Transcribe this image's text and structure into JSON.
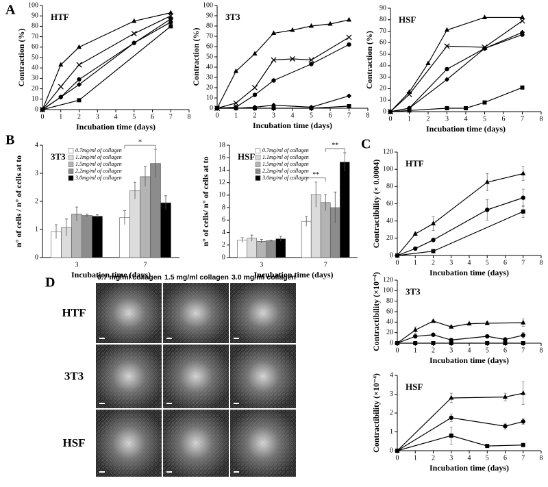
{
  "panels": [
    "A",
    "B",
    "C",
    "D"
  ],
  "chart_data": [
    {
      "type": "line",
      "title": "HTF",
      "xlabel": "Incubation time (days)",
      "ylabel": "Contraction (%)",
      "xlim": [
        0,
        8
      ],
      "xticks": [
        0,
        1,
        2,
        3,
        4,
        5,
        6,
        7,
        8
      ],
      "ylim": [
        0,
        100
      ],
      "yticks": [
        0,
        10,
        20,
        30,
        40,
        50,
        60,
        70,
        80,
        90,
        100
      ],
      "series": [
        {
          "marker": "triangle",
          "color": "#000000",
          "x": [
            0,
            1,
            2,
            5,
            7
          ],
          "values": [
            0,
            43,
            60,
            85,
            93
          ]
        },
        {
          "marker": "cross",
          "color": "#000000",
          "x": [
            0,
            1,
            2,
            5,
            7
          ],
          "values": [
            0,
            22,
            43,
            73,
            90
          ]
        },
        {
          "marker": "diamond",
          "color": "#000000",
          "x": [
            0,
            1,
            2,
            5,
            7
          ],
          "values": [
            0,
            12,
            24,
            64,
            87
          ]
        },
        {
          "marker": "circle",
          "color": "#000000",
          "x": [
            0,
            1,
            2,
            5,
            7
          ],
          "values": [
            0,
            12,
            29,
            64,
            84
          ]
        },
        {
          "marker": "square",
          "color": "#000000",
          "x": [
            0,
            2,
            7
          ],
          "values": [
            0,
            9,
            80
          ]
        }
      ]
    },
    {
      "type": "line",
      "title": "3T3",
      "xlabel": "Incubation time (days)",
      "ylabel": "Contraction (%)",
      "xlim": [
        0,
        8
      ],
      "xticks": [
        0,
        1,
        2,
        3,
        4,
        5,
        6,
        7,
        8
      ],
      "ylim": [
        0,
        100
      ],
      "yticks": [
        0,
        10,
        20,
        30,
        40,
        50,
        60,
        70,
        80,
        90,
        100
      ],
      "series": [
        {
          "marker": "triangle",
          "color": "#000000",
          "x": [
            0,
            1,
            2,
            3,
            4,
            5,
            6,
            7
          ],
          "values": [
            0,
            36,
            53,
            73,
            76,
            80,
            82,
            86
          ]
        },
        {
          "marker": "cross",
          "color": "#000000",
          "x": [
            0,
            1,
            2,
            3,
            4,
            5,
            7
          ],
          "values": [
            0,
            5,
            20,
            47,
            48,
            47,
            69
          ]
        },
        {
          "marker": "circle",
          "color": "#000000",
          "x": [
            0,
            1,
            2,
            3,
            5,
            7
          ],
          "values": [
            0,
            1,
            13,
            27,
            43,
            62
          ]
        },
        {
          "marker": "diamond",
          "color": "#000000",
          "x": [
            0,
            1,
            2,
            3,
            5,
            7
          ],
          "values": [
            0,
            0,
            1,
            3,
            1,
            12
          ]
        },
        {
          "marker": "square",
          "color": "#000000",
          "x": [
            0,
            1,
            2,
            3,
            5,
            7
          ],
          "values": [
            0,
            0,
            0,
            0,
            0,
            2
          ]
        }
      ]
    },
    {
      "type": "line",
      "title": "HSF",
      "xlabel": "Incubation time (days)",
      "ylabel": "Contraction (%)",
      "xlim": [
        0,
        8
      ],
      "xticks": [
        0,
        1,
        2,
        3,
        4,
        5,
        6,
        7,
        8
      ],
      "ylim": [
        0,
        90
      ],
      "yticks": [
        0,
        10,
        20,
        30,
        40,
        50,
        60,
        70,
        80,
        90
      ],
      "series": [
        {
          "marker": "triangle",
          "color": "#000000",
          "x": [
            0,
            1,
            2,
            3,
            5,
            7
          ],
          "values": [
            0,
            17,
            42,
            71,
            82,
            82
          ]
        },
        {
          "marker": "cross",
          "color": "#000000",
          "x": [
            0,
            1,
            3,
            5,
            7
          ],
          "values": [
            0,
            15,
            57,
            56,
            79
          ]
        },
        {
          "marker": "diamond",
          "color": "#000000",
          "x": [
            0,
            1,
            3,
            5,
            7
          ],
          "values": [
            0,
            3,
            28,
            55,
            69
          ]
        },
        {
          "marker": "circle",
          "color": "#000000",
          "x": [
            0,
            1,
            3,
            5,
            7
          ],
          "values": [
            0,
            3,
            37,
            55,
            67
          ]
        },
        {
          "marker": "square",
          "color": "#000000",
          "x": [
            0,
            1,
            3,
            4,
            5,
            7
          ],
          "values": [
            0,
            1,
            3,
            3,
            8,
            21
          ]
        }
      ]
    },
    {
      "type": "bar",
      "title": "3T3",
      "xlabel": "Incubation time (days)",
      "ylabel": "n° of cells / n° of cells at to",
      "categories": [
        "3",
        "7"
      ],
      "ylim": [
        0,
        4
      ],
      "yticks": [
        0,
        1,
        2,
        3,
        4
      ],
      "legend": "upper left",
      "series": [
        {
          "name": "0.7mg/ml of collagen",
          "color": "#ffffff",
          "values": [
            0.92,
            1.42
          ],
          "errors": [
            0.25,
            0.25
          ]
        },
        {
          "name": "1.1mg/ml of collagen",
          "color": "#dcdcdc",
          "values": [
            1.07,
            2.38
          ],
          "errors": [
            0.3,
            0.3
          ]
        },
        {
          "name": "1.5mg/ml of collagen",
          "color": "#b4b4b4",
          "values": [
            1.55,
            2.88
          ],
          "errors": [
            0.25,
            0.35
          ]
        },
        {
          "name": "2.2mg/ml of collagen",
          "color": "#8c8c8c",
          "values": [
            1.5,
            3.35
          ],
          "errors": [
            0.05,
            0.5
          ]
        },
        {
          "name": "3.0mg/ml of collagen",
          "color": "#000000",
          "values": [
            1.47,
            1.95
          ],
          "errors": [
            0.05,
            0.25
          ]
        }
      ],
      "annotations": [
        {
          "text": "*",
          "category": 1,
          "from_series": 0,
          "to_series": 3
        }
      ]
    },
    {
      "type": "bar",
      "title": "HSF",
      "xlabel": "Incubation time (days)",
      "ylabel": "n° of cells/ n° of cells at to",
      "categories": [
        "3",
        "7"
      ],
      "ylim": [
        0,
        18
      ],
      "yticks": [
        0,
        2,
        4,
        6,
        8,
        10,
        12,
        14,
        16,
        18
      ],
      "legend": "upper left",
      "series": [
        {
          "name": "0.7mg/ml of collagen",
          "color": "#ffffff",
          "values": [
            2.8,
            5.8
          ],
          "errors": [
            0.4,
            0.8
          ]
        },
        {
          "name": "1.1mg/ml of collagen",
          "color": "#dcdcdc",
          "values": [
            3.1,
            10.1
          ],
          "errors": [
            0.5,
            2
          ]
        },
        {
          "name": "1.5mg/ml of collagen",
          "color": "#b4b4b4",
          "values": [
            2.6,
            8.8
          ],
          "errors": [
            0.3,
            1.3
          ]
        },
        {
          "name": "2.2mg/ml of collagen",
          "color": "#8c8c8c",
          "values": [
            2.7,
            8.0
          ],
          "errors": [
            0.1,
            2.5
          ]
        },
        {
          "name": "3.0mg/ml of collagen",
          "color": "#000000",
          "values": [
            3.0,
            15.3
          ],
          "errors": [
            0.4,
            1.5
          ]
        }
      ],
      "annotations": [
        {
          "text": "**",
          "category": 1,
          "from_series": 0,
          "to_series": 2
        },
        {
          "text": "**",
          "category": 1,
          "from_series": 2,
          "to_series": 4
        }
      ]
    },
    {
      "type": "line",
      "title": "HTF",
      "xlabel": "Incubation time (days)",
      "ylabel": "Contractibility (× 0.0004)",
      "xlim": [
        0,
        8
      ],
      "xticks": [
        0,
        1,
        2,
        3,
        4,
        5,
        6,
        7,
        8
      ],
      "ylim": [
        0,
        120
      ],
      "yticks": [
        0,
        20,
        40,
        60,
        80,
        100,
        120
      ],
      "series": [
        {
          "marker": "triangle",
          "color": "#000000",
          "x": [
            0,
            1,
            2,
            5,
            7
          ],
          "values": [
            0,
            25,
            37,
            85,
            95
          ],
          "errors": [
            0,
            2,
            8,
            10,
            8
          ]
        },
        {
          "marker": "circle",
          "color": "#000000",
          "x": [
            0,
            1,
            2,
            5,
            7
          ],
          "values": [
            0,
            8,
            18,
            53,
            67
          ],
          "errors": [
            0,
            1,
            2,
            12,
            10
          ]
        },
        {
          "marker": "square",
          "color": "#000000",
          "x": [
            0,
            2,
            7
          ],
          "values": [
            0,
            5,
            51
          ],
          "errors": [
            0,
            1,
            7
          ]
        }
      ]
    },
    {
      "type": "line",
      "title": "3T3",
      "xlabel": "Incubation time (days)",
      "ylabel": "Contractibility (×10⁻⁴)",
      "xlim": [
        0,
        8
      ],
      "xticks": [
        0,
        1,
        2,
        3,
        4,
        5,
        6,
        7,
        8
      ],
      "ylim": [
        0,
        120
      ],
      "yticks": [
        0,
        20,
        40,
        60,
        80,
        100,
        120
      ],
      "series": [
        {
          "marker": "triangle",
          "color": "#000000",
          "x": [
            0,
            1,
            2,
            3,
            4,
            5,
            7
          ],
          "values": [
            0,
            25,
            42,
            31,
            37,
            38,
            39
          ],
          "errors": [
            0,
            6,
            2,
            2,
            2,
            3,
            7
          ]
        },
        {
          "marker": "circle",
          "color": "#000000",
          "x": [
            0,
            1,
            2,
            3,
            5,
            6,
            7
          ],
          "values": [
            0,
            13,
            16,
            6,
            13,
            7,
            15
          ],
          "errors": [
            0,
            2,
            2,
            2,
            2,
            2,
            5
          ]
        },
        {
          "marker": "square",
          "color": "#000000",
          "x": [
            0,
            1,
            2,
            3,
            5,
            6,
            7
          ],
          "values": [
            0,
            0,
            0,
            0,
            0,
            0,
            0
          ],
          "errors": [
            0,
            0,
            0,
            0,
            0,
            0,
            0
          ]
        }
      ]
    },
    {
      "type": "line",
      "title": "HSF",
      "xlabel": "Incubation time (days)",
      "ylabel": "Contractibility (×10⁻⁴)",
      "xlim": [
        0,
        8
      ],
      "xticks": [
        0,
        1,
        2,
        3,
        4,
        5,
        6,
        7,
        8
      ],
      "ylim": [
        0,
        4
      ],
      "yticks": [
        0,
        1,
        2,
        3,
        4
      ],
      "series": [
        {
          "marker": "triangle",
          "color": "#000000",
          "x": [
            0,
            3,
            6,
            7
          ],
          "values": [
            0,
            2.8,
            2.85,
            3.05
          ],
          "errors": [
            0,
            0.25,
            0.2,
            0.6
          ]
        },
        {
          "marker": "circle",
          "color": "#000000",
          "x": [
            0,
            3,
            6,
            7
          ],
          "values": [
            0,
            1.75,
            1.3,
            1.55
          ],
          "errors": [
            0,
            0.2,
            0.15,
            0.15
          ]
        },
        {
          "marker": "square",
          "color": "#000000",
          "x": [
            0,
            3,
            5,
            7
          ],
          "values": [
            0,
            0.8,
            0.25,
            0.3
          ],
          "errors": [
            0,
            0.45,
            0.05,
            0.05
          ]
        }
      ]
    }
  ],
  "image_grid": {
    "columns": [
      "0.7 mg/ml collagen",
      "1.5 mg/ml collagen",
      "3.0 mg/ml collagen"
    ],
    "rows": [
      "HTF",
      "3T3",
      "HSF"
    ]
  }
}
